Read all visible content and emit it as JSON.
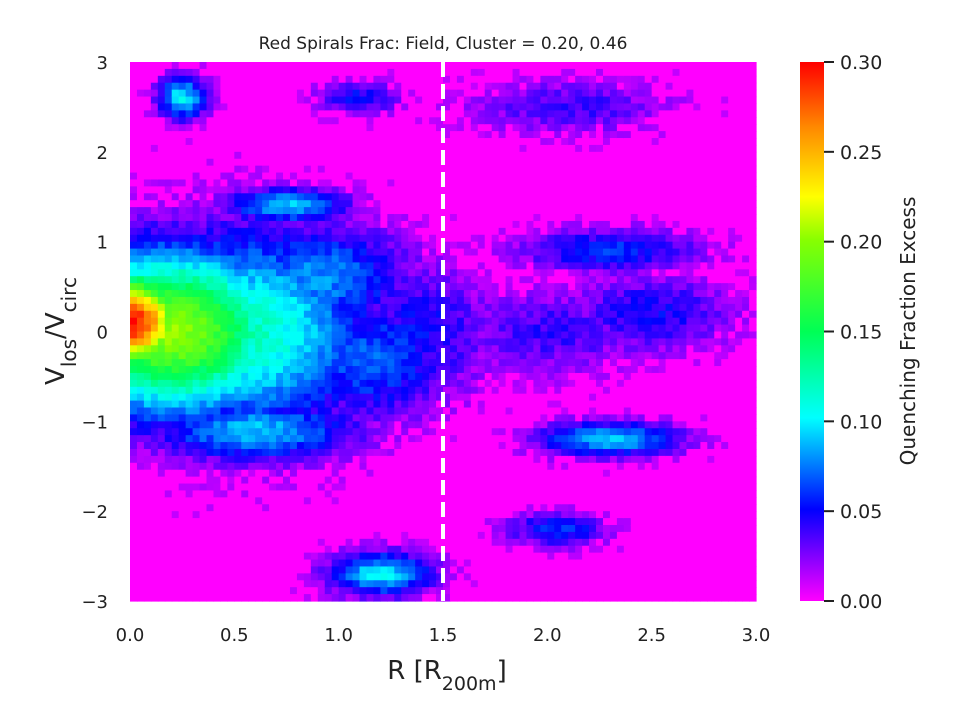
{
  "chart_data": {
    "type": "heatmap",
    "title": "Red Spirals Frac: Field, Cluster = 0.20, 0.46",
    "xlabel": {
      "main": "R [R",
      "sub": "200m",
      "end": "]"
    },
    "ylabel": {
      "main": "V",
      "sub1": "los",
      "mid": "/V",
      "sub2": "circ"
    },
    "xlim": [
      0.0,
      3.0
    ],
    "ylim": [
      -3,
      3
    ],
    "x_ticks": [
      "0.0",
      "0.5",
      "1.0",
      "1.5",
      "2.0",
      "2.5",
      "3.0"
    ],
    "x_tick_values": [
      0.0,
      0.5,
      1.0,
      1.5,
      2.0,
      2.5,
      3.0
    ],
    "y_ticks": [
      "3",
      "2",
      "1",
      "0",
      "−1",
      "−2",
      "−3"
    ],
    "y_tick_values": [
      3,
      2,
      1,
      0,
      -1,
      -2,
      -3
    ],
    "vline": {
      "x": 1.5,
      "style": "dashed",
      "color": "#ffffff"
    },
    "colorbar": {
      "label": "Quenching Fraction Excess",
      "range": [
        0.0,
        0.3
      ],
      "ticks": [
        "0.00",
        "0.05",
        "0.10",
        "0.15",
        "0.20",
        "0.25",
        "0.30"
      ],
      "tick_values": [
        0.0,
        0.05,
        0.1,
        0.15,
        0.2,
        0.25,
        0.3
      ],
      "colormap": "gist_rainbow_r"
    },
    "grid": false,
    "background_color": "#eaeaf2",
    "features": [
      {
        "x": 0.0,
        "y": 0.1,
        "sx": 0.28,
        "sy": 0.55,
        "value": 0.3
      },
      {
        "x": 0.2,
        "y": 0.0,
        "sx": 0.55,
        "sy": 0.9,
        "value": 0.2
      },
      {
        "x": 0.55,
        "y": 0.0,
        "sx": 0.6,
        "sy": 1.1,
        "value": 0.12
      },
      {
        "x": 0.9,
        "y": 0.6,
        "sx": 0.45,
        "sy": 0.6,
        "value": 0.08
      },
      {
        "x": 1.15,
        "y": -0.3,
        "sx": 0.4,
        "sy": 0.7,
        "value": 0.07
      },
      {
        "x": 0.6,
        "y": -1.1,
        "sx": 0.5,
        "sy": 0.35,
        "value": 0.09
      },
      {
        "x": 1.4,
        "y": 0.0,
        "sx": 0.35,
        "sy": 0.8,
        "value": 0.05
      },
      {
        "x": 2.3,
        "y": -1.2,
        "sx": 0.35,
        "sy": 0.2,
        "value": 0.09
      },
      {
        "x": 2.0,
        "y": 0.0,
        "sx": 0.5,
        "sy": 0.5,
        "value": 0.04
      },
      {
        "x": 2.5,
        "y": 0.2,
        "sx": 0.4,
        "sy": 0.45,
        "value": 0.05
      },
      {
        "x": 2.3,
        "y": 0.9,
        "sx": 0.45,
        "sy": 0.25,
        "value": 0.06
      },
      {
        "x": 1.2,
        "y": -2.7,
        "sx": 0.25,
        "sy": 0.25,
        "value": 0.1
      },
      {
        "x": 1.1,
        "y": 2.6,
        "sx": 0.2,
        "sy": 0.2,
        "value": 0.05
      },
      {
        "x": 2.1,
        "y": 2.5,
        "sx": 0.5,
        "sy": 0.3,
        "value": 0.04
      },
      {
        "x": 0.25,
        "y": 2.6,
        "sx": 0.12,
        "sy": 0.25,
        "value": 0.1
      },
      {
        "x": 2.05,
        "y": -2.2,
        "sx": 0.25,
        "sy": 0.2,
        "value": 0.06
      },
      {
        "x": 0.75,
        "y": 1.4,
        "sx": 0.3,
        "sy": 0.2,
        "value": 0.09
      }
    ]
  }
}
